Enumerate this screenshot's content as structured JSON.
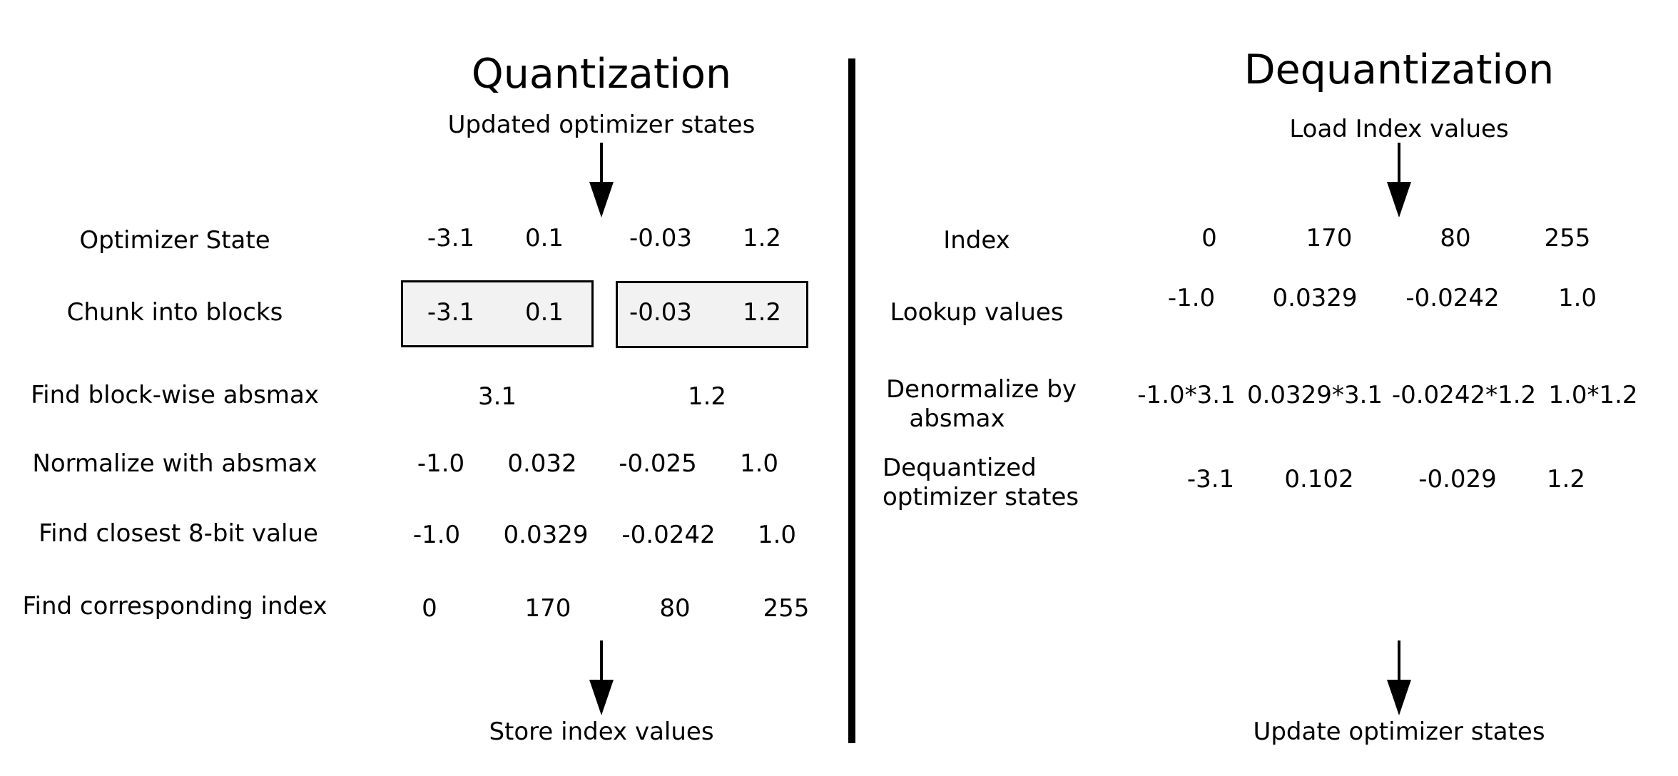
{
  "quantization": {
    "title": "Quantization",
    "input_label": "Updated optimizer states",
    "output_label": "Store index values",
    "rows": [
      {
        "label": "Optimizer State",
        "values": [
          "-3.1",
          "0.1",
          "-0.03",
          "1.2"
        ]
      },
      {
        "label": "Chunk into blocks",
        "values": [
          "-3.1",
          "0.1",
          "-0.03",
          "1.2"
        ]
      },
      {
        "label": "Find block-wise absmax",
        "values": [
          "3.1",
          "1.2"
        ]
      },
      {
        "label": "Normalize with absmax",
        "values": [
          "-1.0",
          "0.032",
          "-0.025",
          "1.0"
        ]
      },
      {
        "label": "Find closest 8-bit value",
        "values": [
          "-1.0",
          "0.0329",
          "-0.0242",
          "1.0"
        ]
      },
      {
        "label": "Find corresponding index",
        "values": [
          "0",
          "170",
          "80",
          "255"
        ]
      }
    ]
  },
  "dequantization": {
    "title": "Dequantization",
    "input_label": "Load Index values",
    "output_label": "Update optimizer states",
    "rows": [
      {
        "label": "Index",
        "values": [
          "0",
          "170",
          "80",
          "255"
        ]
      },
      {
        "label": "Lookup values",
        "values": [
          "-1.0",
          "0.0329",
          "-0.0242",
          "1.0"
        ]
      },
      {
        "label": "Denormalize by\n   absmax",
        "values": [
          "-1.0*3.1",
          "0.0329*3.1",
          "-0.0242*1.2",
          "1.0*1.2"
        ]
      },
      {
        "label": "Dequantized\noptimizer states",
        "values": [
          "-3.1",
          "0.102",
          "-0.029",
          "1.2"
        ]
      }
    ]
  }
}
